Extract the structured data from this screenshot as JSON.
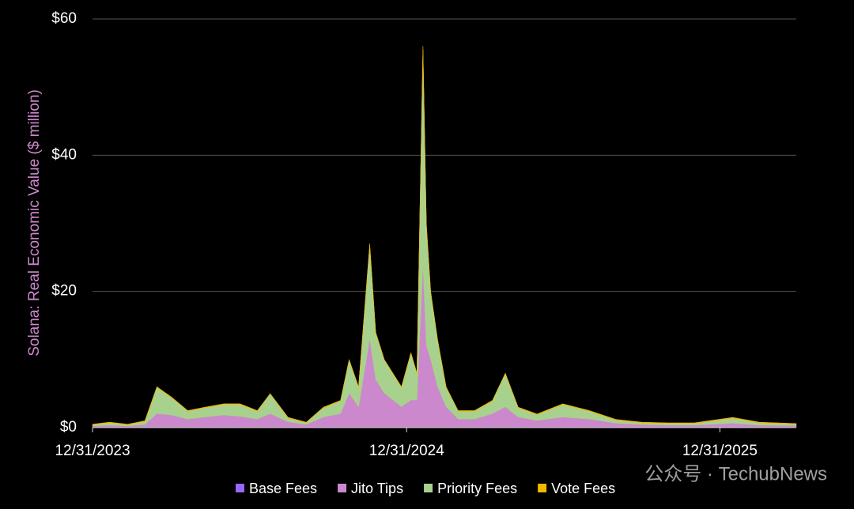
{
  "chart_data": {
    "type": "stacked_area",
    "y_label": "Solana: Real Economic Value ($ million)",
    "x": [
      "12/31/2023",
      "01/20/2024",
      "02/10/2024",
      "03/01/2024",
      "03/15/2024",
      "04/01/2024",
      "04/20/2024",
      "05/10/2024",
      "06/01/2024",
      "06/20/2024",
      "07/10/2024",
      "07/25/2024",
      "08/15/2024",
      "09/05/2024",
      "09/25/2024",
      "10/15/2024",
      "10/25/2024",
      "11/05/2024",
      "11/18/2024",
      "11/25/2024",
      "12/05/2024",
      "12/15/2024",
      "12/25/2024",
      "01/05/2025",
      "01/12/2025",
      "01/19/2025",
      "01/23/2025",
      "01/28/2025",
      "02/05/2025",
      "02/15/2025",
      "03/01/2025",
      "03/20/2025",
      "04/10/2025",
      "04/25/2025",
      "05/10/2025",
      "06/01/2025",
      "07/01/2025",
      "08/01/2025",
      "09/01/2025",
      "10/01/2025",
      "11/01/2025",
      "12/01/2025",
      "01/15/2026",
      "02/15/2026",
      "03/30/2026"
    ],
    "xlim": [
      "12/31/2023",
      "03/30/2026"
    ],
    "xticks": [
      "12/31/2023",
      "12/31/2024",
      "12/31/2025"
    ],
    "ylim": [
      0,
      60
    ],
    "yticks": [
      {
        "value": 0,
        "label": "$0"
      },
      {
        "value": 20,
        "label": "$20"
      },
      {
        "value": 40,
        "label": "$40"
      },
      {
        "value": 60,
        "label": "$60"
      }
    ],
    "grid": true,
    "legend": "bottom",
    "series": [
      {
        "name": "Base Fees",
        "color": "#9966ff",
        "values": [
          0.05,
          0.05,
          0.05,
          0.05,
          0.05,
          0.05,
          0.05,
          0.05,
          0.05,
          0.05,
          0.05,
          0.05,
          0.05,
          0.05,
          0.05,
          0.05,
          0.05,
          0.05,
          0.05,
          0.05,
          0.05,
          0.05,
          0.05,
          0.05,
          0.05,
          0.05,
          0.05,
          0.05,
          0.05,
          0.05,
          0.05,
          0.05,
          0.05,
          0.05,
          0.05,
          0.05,
          0.05,
          0.05,
          0.05,
          0.05,
          0.05,
          0.05,
          0.05,
          0.05,
          0.05
        ]
      },
      {
        "name": "Jito Tips",
        "color": "#cc88cc",
        "values": [
          0.2,
          0.3,
          0.2,
          0.4,
          2,
          1.8,
          1.2,
          1.5,
          1.8,
          1.6,
          1.2,
          2,
          0.8,
          0.4,
          1.5,
          2,
          5,
          3,
          13,
          7,
          5,
          4,
          3,
          4,
          4,
          24,
          12,
          10,
          6,
          3,
          1.2,
          1.2,
          2,
          3,
          1.5,
          1,
          1.5,
          1.2,
          0.6,
          0.4,
          0.3,
          0.3,
          0.6,
          0.3,
          0.25
        ]
      },
      {
        "name": "Priority Fees",
        "color": "#a9d18e",
        "values": [
          0.15,
          0.35,
          0.15,
          0.45,
          3.85,
          2.55,
          1.15,
          1.35,
          1.55,
          1.75,
          1.15,
          2.85,
          0.55,
          0.25,
          1.35,
          1.85,
          4.85,
          2.85,
          13.65,
          6.85,
          4.85,
          3.85,
          2.85,
          6.85,
          3.85,
          31.45,
          17.55,
          9.85,
          6.85,
          2.85,
          1.15,
          1.15,
          1.85,
          4.85,
          1.35,
          0.85,
          1.85,
          1.15,
          0.45,
          0.25,
          0.25,
          0.25,
          0.75,
          0.35,
          0.2
        ]
      },
      {
        "name": "Vote Fees",
        "color": "#f2b800",
        "values": [
          0.1,
          0.1,
          0.1,
          0.1,
          0.1,
          0.1,
          0.1,
          0.1,
          0.1,
          0.1,
          0.1,
          0.1,
          0.1,
          0.1,
          0.1,
          0.1,
          0.1,
          0.1,
          0.3,
          0.1,
          0.1,
          0.1,
          0.1,
          0.1,
          0.1,
          0.5,
          0.4,
          0.1,
          0.1,
          0.1,
          0.1,
          0.1,
          0.1,
          0.1,
          0.1,
          0.1,
          0.1,
          0.1,
          0.1,
          0.1,
          0.1,
          0.1,
          0.1,
          0.1,
          0.1
        ]
      }
    ],
    "watermark": "公众号 · TechubNews"
  }
}
